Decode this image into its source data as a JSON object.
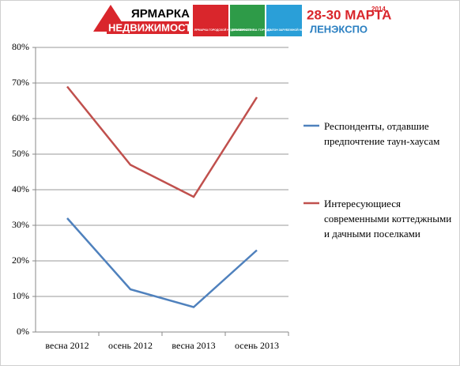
{
  "header": {
    "logo_top": "ЯРМАРКА",
    "logo_bottom": "НЕДВИЖИМОСТИ",
    "boxes": [
      "ЯРМАРКА ГОРОДСКОЙ НЕДВИЖИМОСТИ",
      "АЛЬТЕРНАТИВА ГОРОДУ",
      "САЛОН ЗАРУБЕЖНОЙ НЕДВИЖИМОСТИ"
    ],
    "dates": "28-30 МАРТА",
    "year": "2014",
    "venue": "ЛЕНЭКСПО"
  },
  "chart_data": {
    "type": "line",
    "categories": [
      "весна 2012",
      "осень 2012",
      "весна 2013",
      "осень 2013"
    ],
    "series": [
      {
        "name": "Респонденты, отдавшие предпочтение таун-хаусам",
        "color": "#4f81bd",
        "values": [
          32,
          12,
          7,
          23
        ]
      },
      {
        "name": "Интересующиеся современными коттеджными и дачными поселками",
        "color": "#c0504d",
        "values": [
          69,
          47,
          38,
          66
        ]
      }
    ],
    "ylim": [
      0,
      80
    ],
    "yticks": [
      {
        "value": 0,
        "label": "0%"
      },
      {
        "value": 10,
        "label": "10%"
      },
      {
        "value": 20,
        "label": "20%"
      },
      {
        "value": 30,
        "label": "30%"
      },
      {
        "value": 40,
        "label": "40%"
      },
      {
        "value": 50,
        "label": "50%"
      },
      {
        "value": 60,
        "label": "60%"
      },
      {
        "value": 70,
        "label": "70%"
      },
      {
        "value": 80,
        "label": "80%"
      }
    ],
    "grid": true,
    "legend": "right"
  }
}
